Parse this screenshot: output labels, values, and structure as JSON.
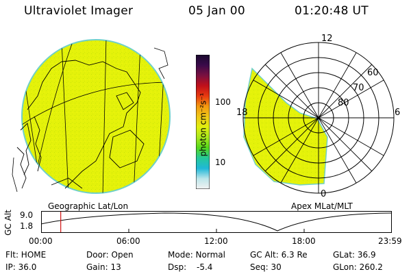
{
  "header": {
    "title": "Ultraviolet Imager",
    "date": "05 Jan 00",
    "time": "01:20:48 UT"
  },
  "colors": {
    "image_fill": "#e4f20a",
    "image_edge": "#6fd0c8",
    "trace": "#000000",
    "time_marker": "#d01010"
  },
  "colorbar": {
    "unit_label": "photon cm⁻²s⁻¹",
    "ticks": [
      "100",
      "10"
    ],
    "stops": [
      "#1a0a2e",
      "#3a0a4a",
      "#7a1040",
      "#c0101a",
      "#e83a10",
      "#f39a10",
      "#f0c818",
      "#e0ef10",
      "#a9e81e",
      "#55d81c",
      "#25c89a",
      "#20b8d8",
      "#bde6ea",
      "#f2f2f2"
    ]
  },
  "left_panel": {
    "caption": "Geographic Lat/Lon"
  },
  "right_panel": {
    "caption": "Apex MLat/MLT",
    "mlt_labels": [
      "12",
      "18",
      "6",
      "0"
    ],
    "lat_labels": [
      "60",
      "70",
      "80"
    ]
  },
  "timeline": {
    "ylabel": "GC Alt",
    "yticks": [
      "9.0",
      "1.8"
    ],
    "xticks": [
      "00:00",
      "06:00",
      "12:00",
      "18:00",
      "23:59"
    ],
    "current_time_fraction": 0.056
  },
  "status": {
    "flt": "Flt: HOME",
    "ip": "IP: 36.0",
    "door": "Door: Open",
    "gain": "Gain: 13",
    "mode": "Mode: Normal",
    "dsp_label": "Dsp:",
    "dsp_value": "-5.4",
    "gc_alt": "GC Alt: 6.3 Re",
    "seq": "Seq: 30",
    "glat": "GLat:  36.9",
    "glon": "GLon: 260.2"
  }
}
